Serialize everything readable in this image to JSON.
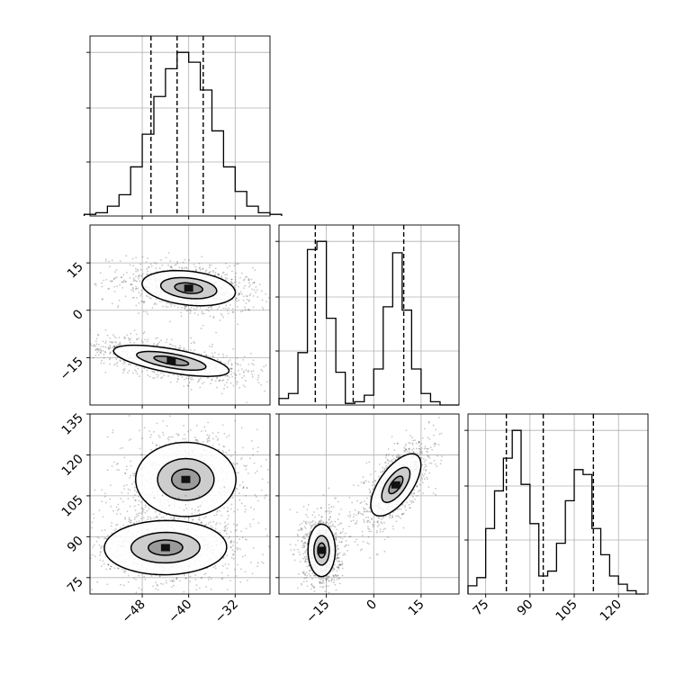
{
  "chart_data": {
    "type": "corner",
    "parameters": [
      {
        "bins": [
          -58,
          -56,
          -54,
          -52,
          -50,
          -48,
          -46,
          -44,
          -42,
          -40,
          -38,
          -36,
          -34,
          -32,
          -30,
          -28,
          -26,
          -24
        ],
        "counts": [
          0.01,
          0.02,
          0.06,
          0.13,
          0.3,
          0.5,
          0.73,
          0.9,
          1.0,
          0.94,
          0.77,
          0.52,
          0.3,
          0.15,
          0.06,
          0.02,
          0.01
        ],
        "quantiles": [
          -46.5,
          -42.0,
          -37.5
        ]
      },
      {
        "bins": [
          -30,
          -27,
          -24,
          -21,
          -18,
          -15,
          -12,
          -9,
          -6,
          -3,
          0,
          3,
          6,
          9,
          12,
          15,
          18,
          21,
          24,
          27
        ],
        "counts": [
          0.04,
          0.07,
          0.32,
          0.95,
          1.0,
          0.53,
          0.2,
          0.01,
          0.02,
          0.06,
          0.22,
          0.6,
          0.93,
          0.58,
          0.22,
          0.07,
          0.02,
          0.0,
          0.0
        ],
        "quantiles": [
          -18.5,
          -6.5,
          9.5
        ]
      },
      {
        "bins": [
          69,
          72,
          75,
          78,
          81,
          84,
          87,
          90,
          93,
          96,
          99,
          102,
          105,
          108,
          111,
          114,
          117,
          120,
          123,
          126,
          129
        ],
        "counts": [
          0.05,
          0.1,
          0.4,
          0.63,
          0.83,
          1.0,
          0.67,
          0.43,
          0.11,
          0.14,
          0.31,
          0.57,
          0.76,
          0.73,
          0.4,
          0.24,
          0.11,
          0.06,
          0.02,
          0.0
        ],
        "quantiles": [
          82.0,
          94.5,
          111.5
        ]
      }
    ],
    "pairs": [
      {
        "x": 0,
        "y": 1,
        "clusters": [
          {
            "cx": -40,
            "cy": 7,
            "sx": 5.5,
            "sy": 3.5,
            "rot": -17,
            "levels": [
              0.45,
              0.9,
              1.5
            ]
          },
          {
            "cx": -43,
            "cy": -16,
            "sx": 7.0,
            "sy": 2.4,
            "rot": -20,
            "levels": [
              0.45,
              0.9,
              1.5
            ]
          }
        ]
      },
      {
        "x": 0,
        "y": 2,
        "clusters": [
          {
            "cx": -40.5,
            "cy": 111,
            "sx": 5.4,
            "sy": 8.5,
            "rot": 0,
            "levels": [
              0.45,
              0.9,
              1.6
            ]
          },
          {
            "cx": -44,
            "cy": 86,
            "sx": 6.6,
            "sy": 6.2,
            "rot": 10,
            "levels": [
              0.45,
              0.9,
              1.6
            ]
          }
        ]
      },
      {
        "x": 1,
        "y": 2,
        "clusters": [
          {
            "cx": 7,
            "cy": 109,
            "sx": 3.4,
            "sy": 8.0,
            "rot": -30,
            "levels": [
              0.45,
              0.9,
              1.6
            ]
          },
          {
            "cx": -16.5,
            "cy": 85,
            "sx": 2.7,
            "sy": 6.0,
            "rot": 0,
            "levels": [
              0.45,
              0.9,
              1.6
            ]
          }
        ]
      }
    ],
    "x_ranges": [
      [
        -57,
        -26
      ],
      [
        -30,
        27
      ],
      [
        69,
        130
      ]
    ],
    "y_ranges": [
      [
        -30,
        27
      ],
      [
        69,
        135
      ]
    ],
    "tick_values": [
      [
        -48,
        -40,
        -32
      ],
      [
        -15,
        0,
        15
      ],
      [
        75,
        90,
        105,
        120,
        135
      ]
    ],
    "tick_labels": [
      [
        "−48",
        "−40",
        "−32"
      ],
      [
        "−15",
        "0",
        "15"
      ],
      [
        "75",
        "90",
        "105",
        "120",
        "135"
      ]
    ],
    "grid": true,
    "colors": {
      "line": "#000000",
      "grid": "#b0b0b0",
      "points": "#000000",
      "fill": "#808080"
    }
  }
}
